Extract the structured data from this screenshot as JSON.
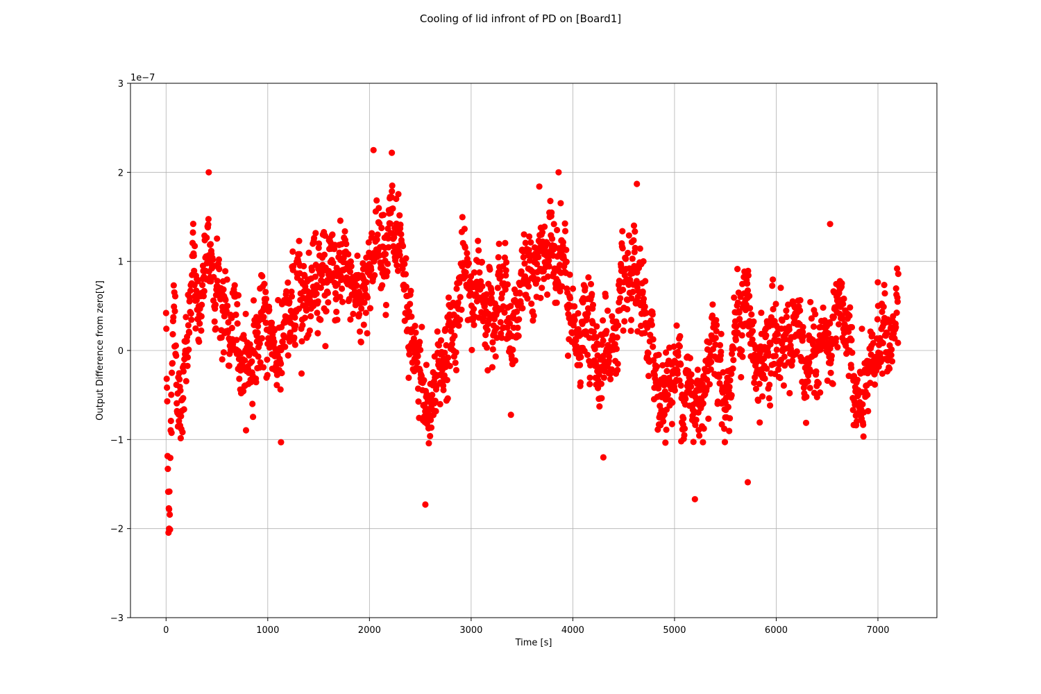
{
  "chart_data": {
    "type": "scatter",
    "title": "Cooling of lid infront of PD on [Board1]",
    "xlabel": "Time [s]",
    "ylabel": "Output Difference from zero[V]",
    "y_offset_label": "1e−7",
    "xlim": [
      -350,
      7580
    ],
    "ylim": [
      -3e-07,
      3e-07
    ],
    "x_ticks": [
      0,
      1000,
      2000,
      3000,
      4000,
      5000,
      6000,
      7000
    ],
    "x_tick_labels": [
      "0",
      "1000",
      "2000",
      "3000",
      "4000",
      "5000",
      "6000",
      "7000"
    ],
    "y_ticks": [
      -3e-07,
      -2e-07,
      -1e-07,
      0,
      1e-07,
      2e-07,
      3e-07
    ],
    "y_tick_labels": [
      "−3",
      "−2",
      "−1",
      "0",
      "1",
      "2",
      "3"
    ],
    "grid": true,
    "marker_color": "#ff0000",
    "series": [
      {
        "x_range": [
          0,
          7200
        ],
        "sample_count": 2400,
        "trend_points": [
          {
            "x": 0,
            "y": 2.5e-08
          },
          {
            "x": 20,
            "y": -1.3e-07
          },
          {
            "x": 40,
            "y": -1.8e-07
          },
          {
            "x": 60,
            "y": 2e-08
          },
          {
            "x": 80,
            "y": 6e-08
          },
          {
            "x": 120,
            "y": -6e-08
          },
          {
            "x": 200,
            "y": -2e-08
          },
          {
            "x": 260,
            "y": 8e-08
          },
          {
            "x": 330,
            "y": 5e-08
          },
          {
            "x": 420,
            "y": 1e-07
          },
          {
            "x": 500,
            "y": 9e-08
          },
          {
            "x": 600,
            "y": 2e-08
          },
          {
            "x": 700,
            "y": 1e-08
          },
          {
            "x": 800,
            "y": -1e-08
          },
          {
            "x": 900,
            "y": 1e-08
          },
          {
            "x": 1000,
            "y": 3e-08
          },
          {
            "x": 1100,
            "y": 0
          },
          {
            "x": 1200,
            "y": 2e-08
          },
          {
            "x": 1300,
            "y": 7e-08
          },
          {
            "x": 1400,
            "y": 8e-08
          },
          {
            "x": 1500,
            "y": 1e-07
          },
          {
            "x": 1600,
            "y": 8e-08
          },
          {
            "x": 1700,
            "y": 7e-08
          },
          {
            "x": 1800,
            "y": 8e-08
          },
          {
            "x": 1900,
            "y": 6e-08
          },
          {
            "x": 2000,
            "y": 1e-07
          },
          {
            "x": 2100,
            "y": 1.2e-07
          },
          {
            "x": 2200,
            "y": 1.4e-07
          },
          {
            "x": 2300,
            "y": 8e-08
          },
          {
            "x": 2400,
            "y": 1e-08
          },
          {
            "x": 2500,
            "y": -3e-08
          },
          {
            "x": 2550,
            "y": -8e-08
          },
          {
            "x": 2600,
            "y": -6e-08
          },
          {
            "x": 2700,
            "y": -1e-08
          },
          {
            "x": 2800,
            "y": 1e-08
          },
          {
            "x": 2900,
            "y": 8e-08
          },
          {
            "x": 3000,
            "y": 7e-08
          },
          {
            "x": 3100,
            "y": 6e-08
          },
          {
            "x": 3200,
            "y": 7e-08
          },
          {
            "x": 3300,
            "y": 7e-08
          },
          {
            "x": 3400,
            "y": 2e-08
          },
          {
            "x": 3500,
            "y": 7e-08
          },
          {
            "x": 3600,
            "y": 8e-08
          },
          {
            "x": 3700,
            "y": 1e-07
          },
          {
            "x": 3800,
            "y": 1.2e-07
          },
          {
            "x": 3900,
            "y": 1e-07
          },
          {
            "x": 4000,
            "y": 0
          },
          {
            "x": 4100,
            "y": 3e-08
          },
          {
            "x": 4200,
            "y": 1e-08
          },
          {
            "x": 4300,
            "y": 0
          },
          {
            "x": 4400,
            "y": 1e-08
          },
          {
            "x": 4500,
            "y": 5e-08
          },
          {
            "x": 4600,
            "y": 6e-08
          },
          {
            "x": 4700,
            "y": 4e-08
          },
          {
            "x": 4800,
            "y": -2e-08
          },
          {
            "x": 4900,
            "y": -5e-08
          },
          {
            "x": 5000,
            "y": -2e-08
          },
          {
            "x": 5100,
            "y": -3e-08
          },
          {
            "x": 5200,
            "y": -7e-08
          },
          {
            "x": 5300,
            "y": -2e-08
          },
          {
            "x": 5400,
            "y": 3e-08
          },
          {
            "x": 5500,
            "y": -6e-08
          },
          {
            "x": 5600,
            "y": 2e-08
          },
          {
            "x": 5700,
            "y": 6e-08
          },
          {
            "x": 5800,
            "y": -3e-08
          },
          {
            "x": 5900,
            "y": -1e-08
          },
          {
            "x": 6000,
            "y": 2e-08
          },
          {
            "x": 6100,
            "y": 1e-08
          },
          {
            "x": 6200,
            "y": 3e-08
          },
          {
            "x": 6300,
            "y": -5e-08
          },
          {
            "x": 6400,
            "y": 1e-08
          },
          {
            "x": 6500,
            "y": 0
          },
          {
            "x": 6600,
            "y": 1e-08
          },
          {
            "x": 6700,
            "y": 3e-08
          },
          {
            "x": 6800,
            "y": -7e-08
          },
          {
            "x": 6900,
            "y": -6e-08
          },
          {
            "x": 7000,
            "y": 2e-08
          },
          {
            "x": 7100,
            "y": 1e-08
          },
          {
            "x": 7200,
            "y": 4e-08
          }
        ],
        "spread": 3.5e-08,
        "notable_points": [
          {
            "x": 30,
            "y": -2e-07
          },
          {
            "x": 2040,
            "y": 2.25e-07
          },
          {
            "x": 2220,
            "y": 2.22e-07
          },
          {
            "x": 420,
            "y": 2e-07
          },
          {
            "x": 3860,
            "y": 2e-07
          },
          {
            "x": 2550,
            "y": -1.73e-07
          },
          {
            "x": 5200,
            "y": -1.67e-07
          },
          {
            "x": 1130,
            "y": -1.03e-07
          },
          {
            "x": 4300,
            "y": -1.2e-07
          },
          {
            "x": 5720,
            "y": -1.48e-07
          },
          {
            "x": 6530,
            "y": 1.42e-07
          },
          {
            "x": 4630,
            "y": 1.87e-07
          }
        ]
      }
    ]
  }
}
